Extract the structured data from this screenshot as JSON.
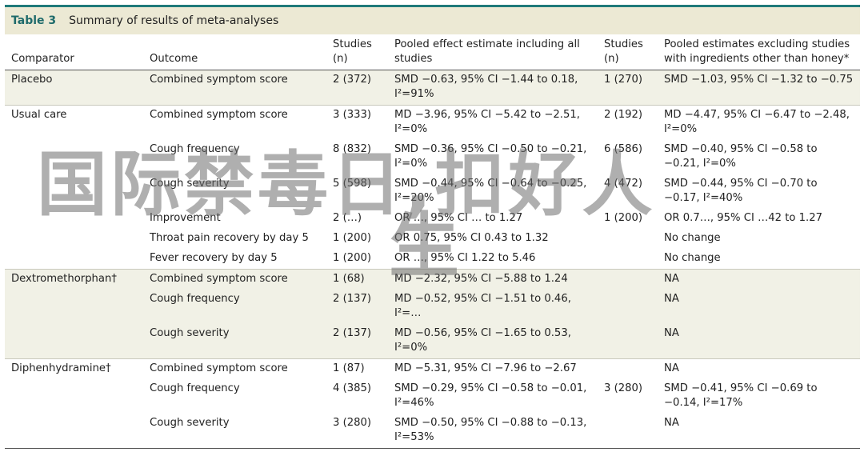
{
  "title": {
    "label": "Table 3",
    "text": "Summary of results of meta-analyses"
  },
  "columns": [
    "Comparator",
    "Outcome",
    "Studies (n)",
    "Pooled effect estimate including all studies",
    "Studies (n)",
    "Pooled estimates excluding studies with ingredients other than honey*"
  ],
  "groups": [
    {
      "comparator": "Placebo",
      "shade": "a",
      "rows": [
        {
          "outcome": "Combined symptom score",
          "n1": "2 (372)",
          "est1": "SMD −0.63, 95% CI −1.44 to 0.18, I²=91%",
          "n2": "1 (270)",
          "est2": "SMD −1.03, 95% CI −1.32 to −0.75"
        }
      ]
    },
    {
      "comparator": "Usual care",
      "shade": "b",
      "rows": [
        {
          "outcome": "Combined symptom score",
          "n1": "3 (333)",
          "est1": "MD −3.96, 95% CI −5.42 to −2.51, I²=0%",
          "n2": "2 (192)",
          "est2": "MD −4.47, 95% CI −6.47 to −2.48, I²=0%"
        },
        {
          "outcome": "Cough frequency",
          "n1": "8 (832)",
          "est1": "SMD −0.36, 95% CI −0.50 to −0.21, I²=0%",
          "n2": "6 (586)",
          "est2": "SMD −0.40, 95% CI −0.58 to −0.21, I²=0%"
        },
        {
          "outcome": "Cough severity",
          "n1": "5 (598)",
          "est1": "SMD −0.44, 95% CI −0.64 to −0.25, I²=20%",
          "n2": "4 (472)",
          "est2": "SMD −0.44, 95% CI −0.70 to −0.17, I²=40%"
        },
        {
          "outcome": "Improvement",
          "n1": "2 (…)",
          "est1": "OR …, 95% CI … to 1.27",
          "n2": "1 (200)",
          "est2": "OR 0.7…, 95% CI …42 to 1.27"
        },
        {
          "outcome": "Throat pain recovery by day 5",
          "n1": "1 (200)",
          "est1": "OR 0.75, 95% CI 0.43 to 1.32",
          "n2": "",
          "est2": "No change"
        },
        {
          "outcome": "Fever recovery by day 5",
          "n1": "1 (200)",
          "est1": "OR …, 95% CI 1.22 to 5.46",
          "n2": "",
          "est2": "No change"
        }
      ]
    },
    {
      "comparator": "Dextromethorphan†",
      "shade": "a",
      "rows": [
        {
          "outcome": "Combined symptom score",
          "n1": "1 (68)",
          "est1": "MD −2.32, 95% CI −5.88 to 1.24",
          "n2": "",
          "est2": "NA"
        },
        {
          "outcome": "Cough frequency",
          "n1": "2 (137)",
          "est1": "MD −0.52, 95% CI −1.51 to 0.46, I²=…",
          "n2": "",
          "est2": "NA"
        },
        {
          "outcome": "Cough severity",
          "n1": "2 (137)",
          "est1": "MD −0.56, 95% CI −1.65 to 0.53, I²=0%",
          "n2": "",
          "est2": "NA"
        }
      ]
    },
    {
      "comparator": "Diphenhydramine†",
      "shade": "b",
      "rows": [
        {
          "outcome": "Combined symptom score",
          "n1": "1 (87)",
          "est1": "MD −5.31, 95% CI −7.96 to −2.67",
          "n2": "",
          "est2": "NA"
        },
        {
          "outcome": "Cough frequency",
          "n1": "4 (385)",
          "est1": "SMD −0.29, 95% CI −0.58 to −0.01, I²=46%",
          "n2": "3 (280)",
          "est2": "SMD −0.41, 95% CI −0.69 to −0.14, I²=17%"
        },
        {
          "outcome": "Cough severity",
          "n1": "3 (280)",
          "est1": "SMD −0.50, 95% CI −0.88 to −0.13, I²=53%",
          "n2": "",
          "est2": "NA"
        }
      ]
    }
  ],
  "watermark": {
    "line1": "国际禁毒日,扣好人",
    "line2": "生"
  }
}
